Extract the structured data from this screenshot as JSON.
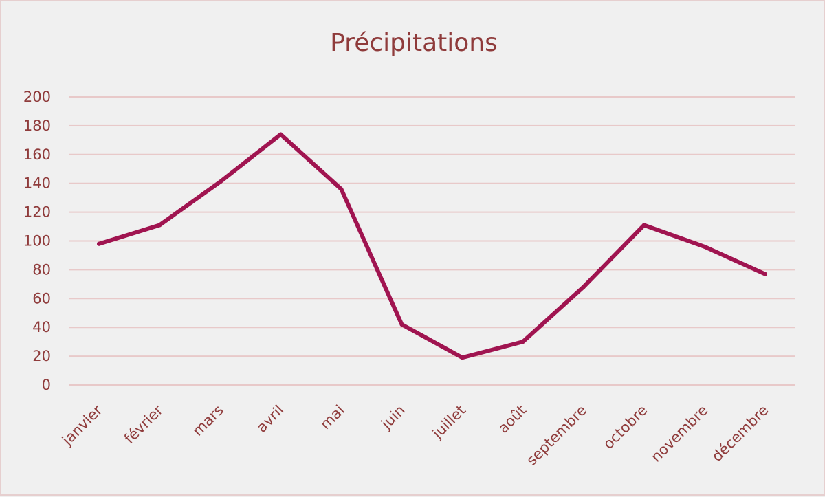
{
  "chart_data": {
    "type": "line",
    "title": "Précipitations",
    "categories": [
      "janvier",
      "février",
      "mars",
      "avril",
      "mai",
      "juin",
      "juillet",
      "août",
      "septembre",
      "octobre",
      "novembre",
      "décembre"
    ],
    "series": [
      {
        "values": [
          98,
          111,
          141,
          174,
          136,
          42,
          19,
          30,
          68,
          111,
          96,
          77
        ]
      }
    ],
    "ylim": [
      0,
      200
    ],
    "yticks": [
      0,
      20,
      40,
      60,
      80,
      100,
      120,
      140,
      160,
      180,
      200
    ],
    "grid": true,
    "colors": {
      "line": "#a01450",
      "grid": "#e8c9c9",
      "text": "#8f3b3b",
      "border": "#e6cfcf",
      "background": "#f0f0f0"
    }
  }
}
